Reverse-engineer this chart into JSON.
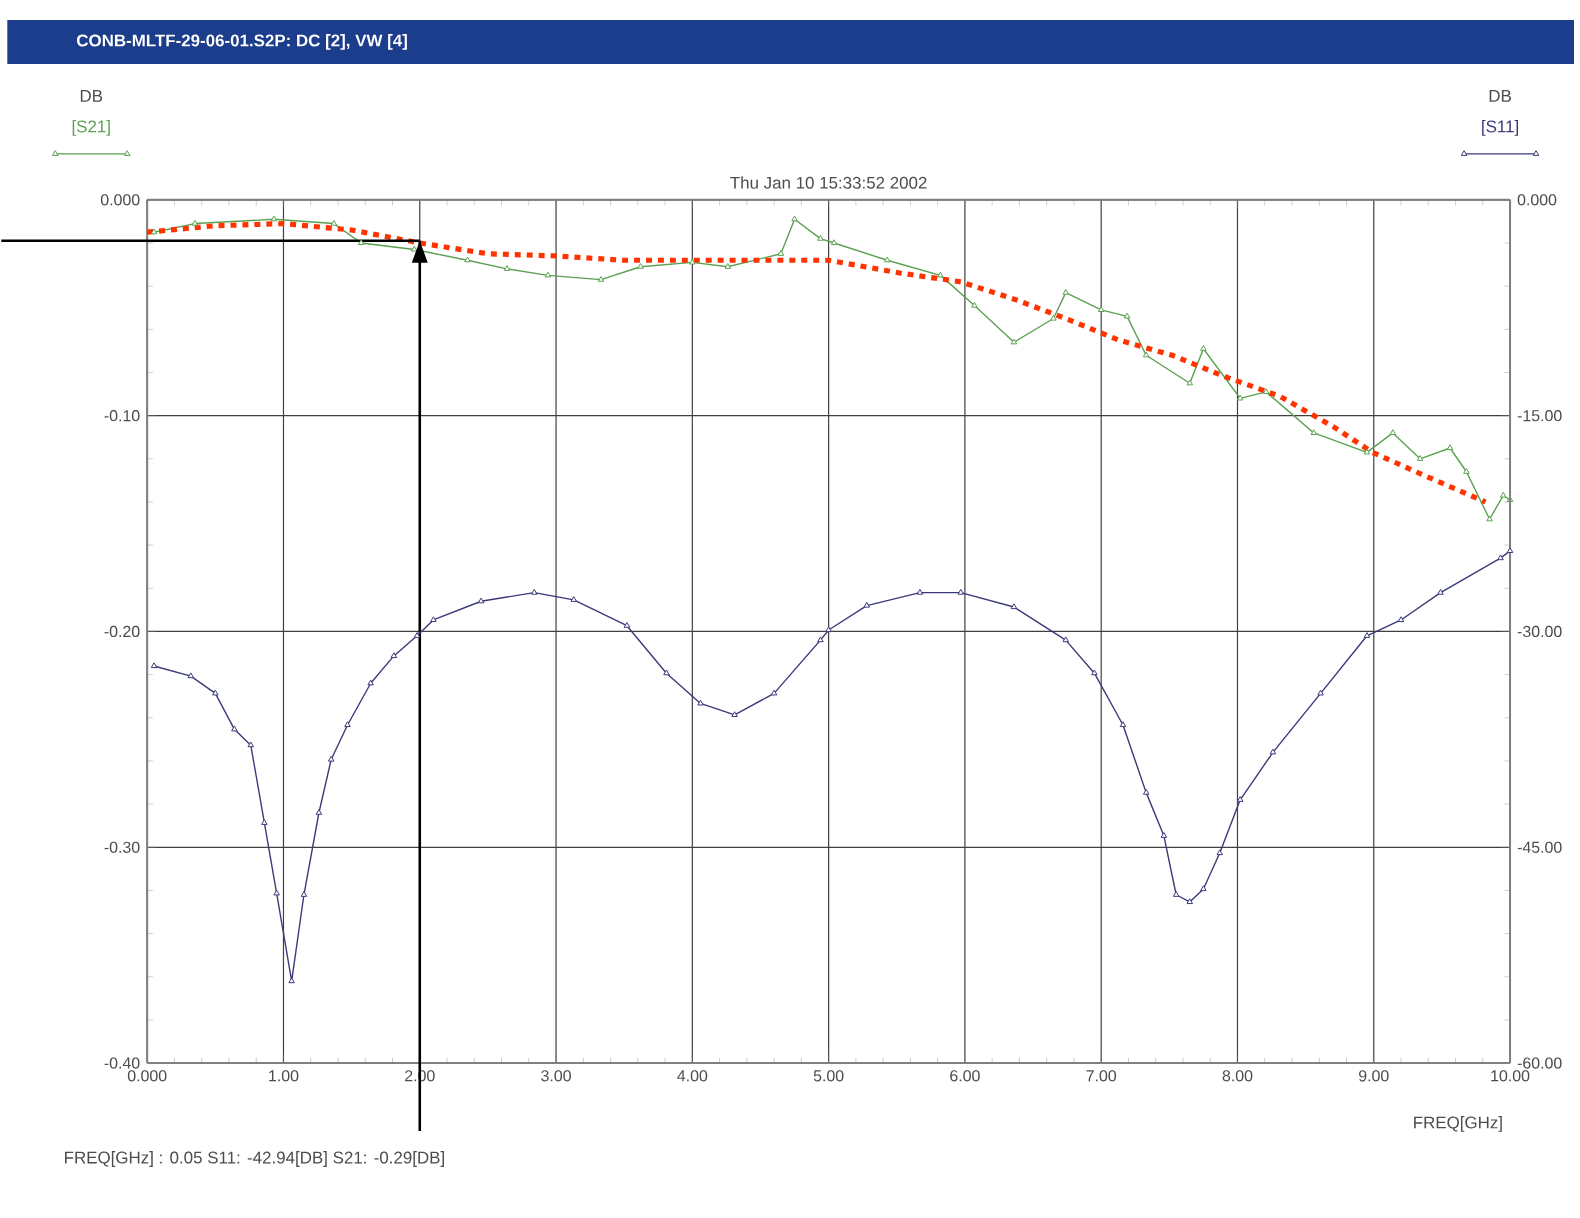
{
  "chart_data": {
    "type": "line",
    "title": "CONB-MLTF-29-06-01.S2P: DC [2], VW [4]",
    "subtitle": "Thu Jan 10 15:33:52 2002",
    "xlabel": "FREQ[GHz]",
    "annotations": [
      "FREQ[GHz] :  0.05     S11: -42.94[DB]     S21: -0.29[DB]",
      "DB",
      "DB"
    ],
    "xlim": [
      0,
      10
    ],
    "ylim": [
      -0.4,
      0
    ],
    "y2lim": [
      -60,
      0
    ],
    "xticks": [
      {
        "value": 0,
        "label": "0.000"
      },
      {
        "value": 1,
        "label": "1.00"
      },
      {
        "value": 2,
        "label": "2.00"
      },
      {
        "value": 3,
        "label": "3.00"
      },
      {
        "value": 4,
        "label": "4.00"
      },
      {
        "value": 5,
        "label": "5.00"
      },
      {
        "value": 6,
        "label": "6.00"
      },
      {
        "value": 7,
        "label": "7.00"
      },
      {
        "value": 8,
        "label": "8.00"
      },
      {
        "value": 9,
        "label": "9.00"
      },
      {
        "value": 10,
        "label": "10.00"
      }
    ],
    "yticks": [
      {
        "value": -0.4,
        "label": "-0.40"
      },
      {
        "value": -0.3,
        "label": "-0.30"
      },
      {
        "value": -0.2,
        "label": "-0.20"
      },
      {
        "value": -0.1,
        "label": "-0.10"
      },
      {
        "value": 0,
        "label": "0.000"
      }
    ],
    "y2ticks": [
      {
        "value": -60,
        "label": "-60.00"
      },
      {
        "value": -45,
        "label": "-45.00"
      },
      {
        "value": -30,
        "label": "-30.00"
      },
      {
        "value": -15,
        "label": "-15.00"
      },
      {
        "value": 0,
        "label": "0.000"
      }
    ],
    "grid": true,
    "ref_lines": [
      {
        "axis": "x",
        "value": 2.0,
        "color": "#000000"
      },
      {
        "axis": "y",
        "value": -0.019,
        "color": "#000000"
      }
    ],
    "series": [
      {
        "name": "[S21]",
        "type": "line",
        "color": "#5aa050",
        "marker": "triangle",
        "line_style": "solid",
        "x": [
          0.05,
          0.35,
          0.93,
          1.37,
          1.57,
          1.96,
          2.35,
          2.64,
          2.94,
          3.33,
          3.62,
          4.0,
          4.26,
          4.65,
          4.75,
          4.94,
          5.04,
          5.43,
          5.82,
          6.07,
          6.36,
          6.65,
          6.74,
          7.0,
          7.19,
          7.33,
          7.65,
          7.75,
          8.02,
          8.21,
          8.56,
          8.95,
          9.14,
          9.34,
          9.56,
          9.68,
          9.85,
          9.95,
          10.0
        ],
        "values": [
          -0.015,
          -0.011,
          -0.009,
          -0.011,
          -0.02,
          -0.023,
          -0.028,
          -0.032,
          -0.035,
          -0.037,
          -0.031,
          -0.029,
          -0.031,
          -0.025,
          -0.009,
          -0.018,
          -0.02,
          -0.028,
          -0.035,
          -0.049,
          -0.066,
          -0.055,
          -0.043,
          -0.051,
          -0.054,
          -0.072,
          -0.085,
          -0.069,
          -0.092,
          -0.089,
          -0.108,
          -0.117,
          -0.108,
          -0.12,
          -0.115,
          -0.126,
          -0.148,
          -0.137,
          -0.139
        ]
      },
      {
        "name": "[S11]",
        "type": "line",
        "axis": "y2",
        "color": "#3a3a7a",
        "marker": "triangle",
        "line_style": "solid",
        "x": [
          0.05,
          0.32,
          0.5,
          0.64,
          0.76,
          0.86,
          0.95,
          1.06,
          1.15,
          1.26,
          1.35,
          1.47,
          1.64,
          1.81,
          1.98,
          2.1,
          2.45,
          2.84,
          3.13,
          3.52,
          3.81,
          4.06,
          4.31,
          4.6,
          4.94,
          5.0,
          5.28,
          5.67,
          5.97,
          6.36,
          6.74,
          6.95,
          7.16,
          7.33,
          7.46,
          7.55,
          7.65,
          7.75,
          7.87,
          8.02,
          8.26,
          8.61,
          8.95,
          9.2,
          9.49,
          9.93,
          10.0
        ],
        "values": [
          -32.4,
          -33.1,
          -34.3,
          -36.8,
          -37.9,
          -43.3,
          -48.2,
          -54.3,
          -48.3,
          -42.6,
          -38.9,
          -36.5,
          -33.6,
          -31.7,
          -30.3,
          -29.2,
          -27.9,
          -27.3,
          -27.8,
          -29.6,
          -32.9,
          -35.0,
          -35.8,
          -34.3,
          -30.6,
          -29.9,
          -28.2,
          -27.3,
          -27.3,
          -28.3,
          -30.6,
          -32.9,
          -36.5,
          -41.2,
          -44.2,
          -48.3,
          -48.8,
          -47.9,
          -45.4,
          -41.7,
          -38.4,
          -34.3,
          -30.3,
          -29.2,
          -27.3,
          -24.9,
          -24.4
        ]
      },
      {
        "type": "line",
        "color": "#ff3300",
        "marker": "none",
        "line_style": "dotted",
        "x": [
          0,
          0.5,
          1.0,
          1.5,
          2.0,
          2.5,
          3.0,
          3.5,
          4.0,
          4.5,
          5.0,
          5.53,
          5.97,
          6.36,
          6.74,
          7.13,
          7.52,
          7.91,
          8.31,
          8.7,
          8.99,
          9.38,
          9.82
        ],
        "values": [
          -0.015,
          -0.012,
          -0.011,
          -0.014,
          -0.02,
          -0.025,
          -0.026,
          -0.028,
          -0.028,
          -0.028,
          -0.028,
          -0.034,
          -0.038,
          -0.046,
          -0.055,
          -0.065,
          -0.072,
          -0.082,
          -0.091,
          -0.105,
          -0.117,
          -0.128,
          -0.14
        ]
      }
    ]
  }
}
